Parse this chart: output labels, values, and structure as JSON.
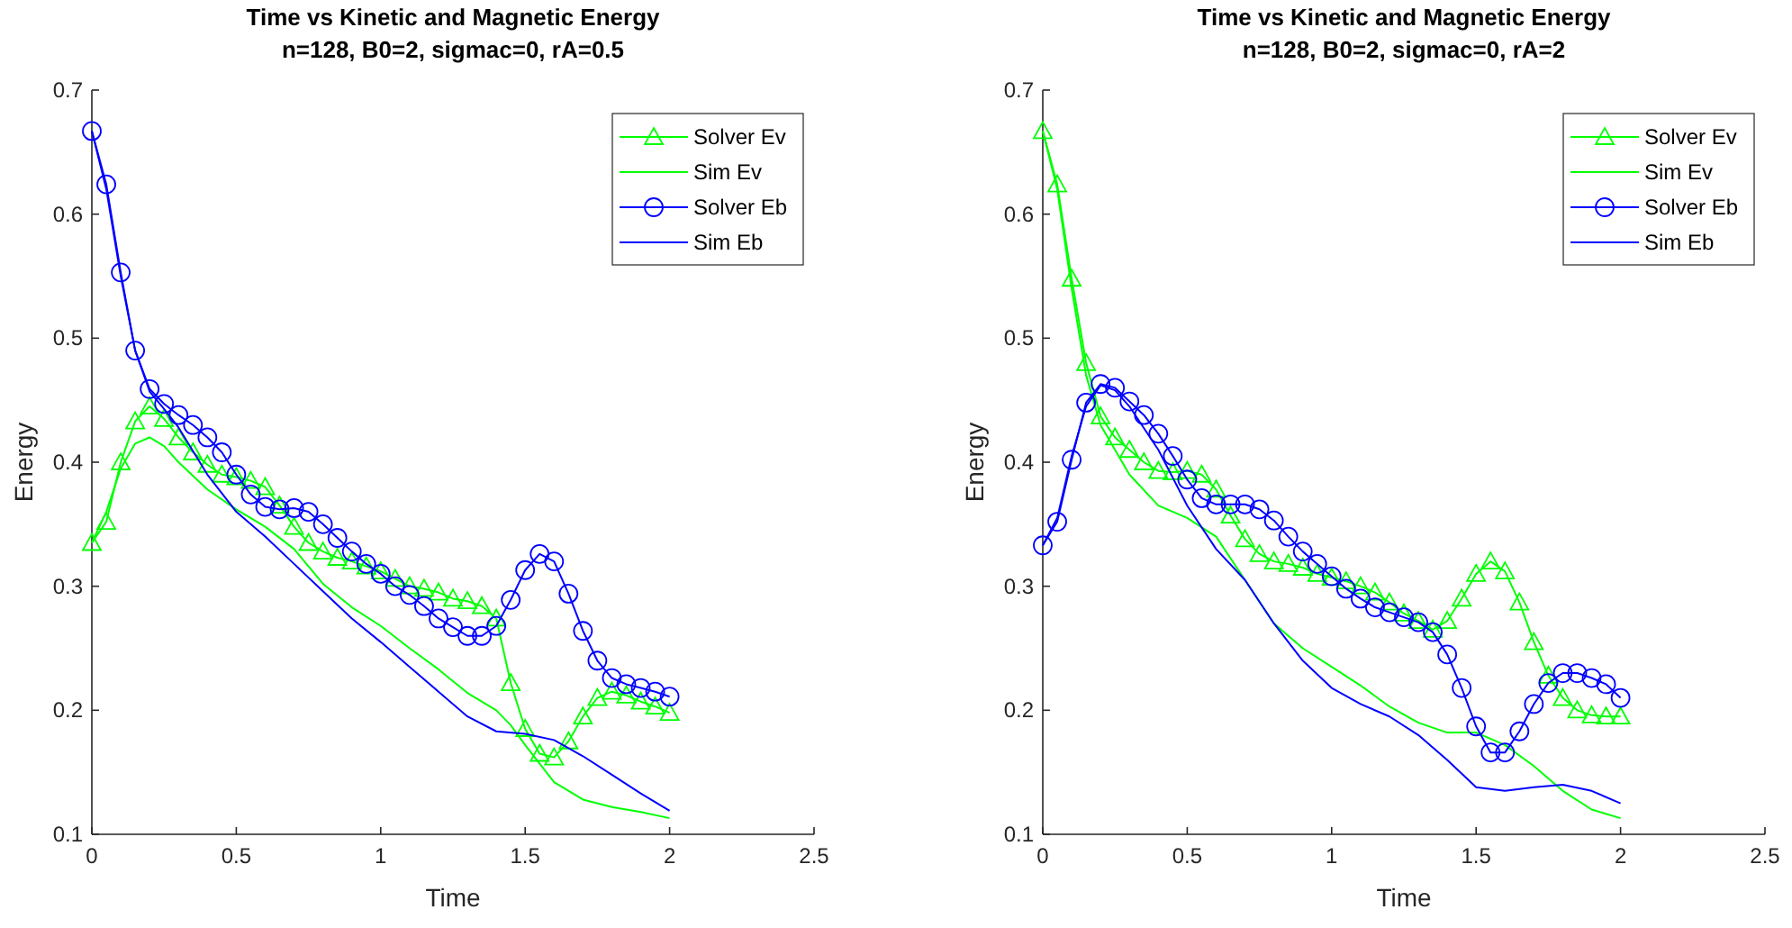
{
  "chart_data": [
    {
      "type": "line",
      "title": "Time vs Kinetic and Magnetic Energy",
      "subtitle": "n=128, B0=2, sigmac=0, rA=0.5",
      "xlabel": "Time",
      "ylabel": "Energy",
      "xlim": [
        0,
        2.5
      ],
      "xticks": [
        0,
        0.5,
        1,
        1.5,
        2,
        2.5
      ],
      "ylim": [
        0.1,
        0.7
      ],
      "yticks": [
        0.1,
        0.2,
        0.3,
        0.4,
        0.5,
        0.6,
        0.7
      ],
      "grid": false,
      "legend": "top right",
      "line_style": "solid",
      "series": [
        {
          "name": "Solver Ev",
          "color": "#00ff00",
          "marker": "triangle",
          "x": [
            0,
            0.05,
            0.1,
            0.15,
            0.2,
            0.25,
            0.3,
            0.35,
            0.4,
            0.45,
            0.5,
            0.55,
            0.6,
            0.65,
            0.7,
            0.75,
            0.8,
            0.85,
            0.9,
            0.95,
            1,
            1.05,
            1.1,
            1.15,
            1.2,
            1.25,
            1.3,
            1.35,
            1.4,
            1.45,
            1.5,
            1.55,
            1.6,
            1.65,
            1.7,
            1.75,
            1.8,
            1.85,
            1.9,
            1.95,
            2
          ],
          "values": [
            0.335,
            0.352,
            0.4,
            0.433,
            0.445,
            0.435,
            0.42,
            0.408,
            0.398,
            0.39,
            0.388,
            0.385,
            0.38,
            0.365,
            0.348,
            0.335,
            0.328,
            0.323,
            0.32,
            0.316,
            0.312,
            0.306,
            0.3,
            0.298,
            0.295,
            0.29,
            0.288,
            0.284,
            0.274,
            0.222,
            0.185,
            0.165,
            0.162,
            0.175,
            0.195,
            0.21,
            0.215,
            0.212,
            0.207,
            0.203,
            0.198
          ]
        },
        {
          "name": "Sim Ev",
          "color": "#00ff00",
          "marker": "none",
          "x": [
            0,
            0.05,
            0.1,
            0.15,
            0.2,
            0.25,
            0.3,
            0.4,
            0.5,
            0.6,
            0.7,
            0.8,
            0.9,
            1,
            1.1,
            1.2,
            1.3,
            1.4,
            1.45,
            1.5,
            1.6,
            1.7,
            1.8,
            1.9,
            2
          ],
          "values": [
            0.335,
            0.36,
            0.395,
            0.415,
            0.42,
            0.413,
            0.4,
            0.378,
            0.362,
            0.348,
            0.33,
            0.302,
            0.283,
            0.268,
            0.25,
            0.233,
            0.214,
            0.2,
            0.188,
            0.172,
            0.142,
            0.128,
            0.122,
            0.118,
            0.113
          ]
        },
        {
          "name": "Solver Eb",
          "color": "#0000ff",
          "marker": "circle",
          "x": [
            0,
            0.05,
            0.1,
            0.15,
            0.2,
            0.25,
            0.3,
            0.35,
            0.4,
            0.45,
            0.5,
            0.55,
            0.6,
            0.65,
            0.7,
            0.75,
            0.8,
            0.85,
            0.9,
            0.95,
            1,
            1.05,
            1.1,
            1.15,
            1.2,
            1.25,
            1.3,
            1.35,
            1.4,
            1.45,
            1.5,
            1.55,
            1.6,
            1.65,
            1.7,
            1.75,
            1.8,
            1.85,
            1.9,
            1.95,
            2
          ],
          "values": [
            0.667,
            0.624,
            0.553,
            0.49,
            0.459,
            0.447,
            0.438,
            0.43,
            0.42,
            0.408,
            0.39,
            0.374,
            0.364,
            0.362,
            0.363,
            0.36,
            0.35,
            0.339,
            0.328,
            0.318,
            0.31,
            0.3,
            0.293,
            0.284,
            0.274,
            0.267,
            0.26,
            0.26,
            0.268,
            0.289,
            0.313,
            0.326,
            0.32,
            0.294,
            0.264,
            0.24,
            0.226,
            0.221,
            0.218,
            0.215,
            0.211
          ]
        },
        {
          "name": "Sim Eb",
          "color": "#0000ff",
          "marker": "none",
          "x": [
            0,
            0.05,
            0.1,
            0.15,
            0.2,
            0.25,
            0.3,
            0.4,
            0.5,
            0.6,
            0.7,
            0.8,
            0.9,
            1,
            1.1,
            1.2,
            1.3,
            1.4,
            1.5,
            1.6,
            1.7,
            1.8,
            1.9,
            2
          ],
          "values": [
            0.667,
            0.62,
            0.55,
            0.49,
            0.457,
            0.443,
            0.428,
            0.39,
            0.36,
            0.34,
            0.318,
            0.296,
            0.274,
            0.255,
            0.235,
            0.215,
            0.195,
            0.183,
            0.181,
            0.176,
            0.163,
            0.148,
            0.133,
            0.119
          ]
        }
      ]
    },
    {
      "type": "line",
      "title": "Time vs Kinetic and Magnetic Energy",
      "subtitle": "n=128, B0=2, sigmac=0, rA=2",
      "xlabel": "Time",
      "ylabel": "Energy",
      "xlim": [
        0,
        2.5
      ],
      "xticks": [
        0,
        0.5,
        1,
        1.5,
        2,
        2.5
      ],
      "ylim": [
        0.1,
        0.7
      ],
      "yticks": [
        0.1,
        0.2,
        0.3,
        0.4,
        0.5,
        0.6,
        0.7
      ],
      "grid": false,
      "legend": "top right",
      "line_style": "solid",
      "series": [
        {
          "name": "Solver Ev",
          "color": "#00ff00",
          "marker": "triangle",
          "x": [
            0,
            0.05,
            0.1,
            0.15,
            0.2,
            0.25,
            0.3,
            0.35,
            0.4,
            0.45,
            0.5,
            0.55,
            0.6,
            0.65,
            0.7,
            0.75,
            0.8,
            0.85,
            0.9,
            0.95,
            1,
            1.05,
            1.1,
            1.15,
            1.2,
            1.25,
            1.3,
            1.35,
            1.4,
            1.45,
            1.5,
            1.55,
            1.6,
            1.65,
            1.7,
            1.75,
            1.8,
            1.85,
            1.9,
            1.95,
            2
          ],
          "values": [
            0.667,
            0.624,
            0.548,
            0.48,
            0.437,
            0.42,
            0.41,
            0.4,
            0.393,
            0.392,
            0.393,
            0.39,
            0.378,
            0.357,
            0.338,
            0.326,
            0.32,
            0.318,
            0.315,
            0.31,
            0.307,
            0.304,
            0.3,
            0.295,
            0.287,
            0.278,
            0.272,
            0.265,
            0.272,
            0.29,
            0.31,
            0.32,
            0.312,
            0.287,
            0.255,
            0.228,
            0.21,
            0.2,
            0.196,
            0.195,
            0.195
          ]
        },
        {
          "name": "Sim Ev",
          "color": "#00ff00",
          "marker": "none",
          "x": [
            0,
            0.05,
            0.1,
            0.15,
            0.2,
            0.3,
            0.4,
            0.5,
            0.6,
            0.7,
            0.8,
            0.9,
            1,
            1.1,
            1.2,
            1.3,
            1.4,
            1.5,
            1.6,
            1.7,
            1.8,
            1.9,
            2
          ],
          "values": [
            0.667,
            0.62,
            0.54,
            0.47,
            0.43,
            0.39,
            0.365,
            0.355,
            0.34,
            0.305,
            0.27,
            0.25,
            0.235,
            0.22,
            0.203,
            0.19,
            0.182,
            0.182,
            0.172,
            0.155,
            0.135,
            0.12,
            0.113
          ]
        },
        {
          "name": "Solver Eb",
          "color": "#0000ff",
          "marker": "circle",
          "x": [
            0,
            0.05,
            0.1,
            0.15,
            0.2,
            0.25,
            0.3,
            0.35,
            0.4,
            0.45,
            0.5,
            0.55,
            0.6,
            0.65,
            0.7,
            0.75,
            0.8,
            0.85,
            0.9,
            0.95,
            1,
            1.05,
            1.1,
            1.15,
            1.2,
            1.25,
            1.3,
            1.35,
            1.4,
            1.45,
            1.5,
            1.55,
            1.6,
            1.65,
            1.7,
            1.75,
            1.8,
            1.85,
            1.9,
            1.95,
            2
          ],
          "values": [
            0.333,
            0.352,
            0.402,
            0.448,
            0.463,
            0.46,
            0.449,
            0.438,
            0.423,
            0.405,
            0.386,
            0.371,
            0.366,
            0.366,
            0.366,
            0.362,
            0.353,
            0.34,
            0.328,
            0.318,
            0.308,
            0.298,
            0.29,
            0.283,
            0.279,
            0.275,
            0.271,
            0.263,
            0.245,
            0.218,
            0.187,
            0.166,
            0.166,
            0.183,
            0.205,
            0.222,
            0.23,
            0.23,
            0.226,
            0.221,
            0.21
          ]
        },
        {
          "name": "Sim Eb",
          "color": "#0000ff",
          "marker": "none",
          "x": [
            0,
            0.05,
            0.1,
            0.15,
            0.2,
            0.25,
            0.3,
            0.4,
            0.5,
            0.6,
            0.7,
            0.8,
            0.9,
            1,
            1.1,
            1.2,
            1.3,
            1.4,
            1.5,
            1.6,
            1.7,
            1.8,
            1.9,
            2
          ],
          "values": [
            0.333,
            0.355,
            0.405,
            0.445,
            0.462,
            0.458,
            0.445,
            0.41,
            0.365,
            0.33,
            0.305,
            0.27,
            0.24,
            0.218,
            0.205,
            0.195,
            0.18,
            0.16,
            0.138,
            0.135,
            0.138,
            0.14,
            0.135,
            0.125
          ]
        }
      ]
    }
  ]
}
